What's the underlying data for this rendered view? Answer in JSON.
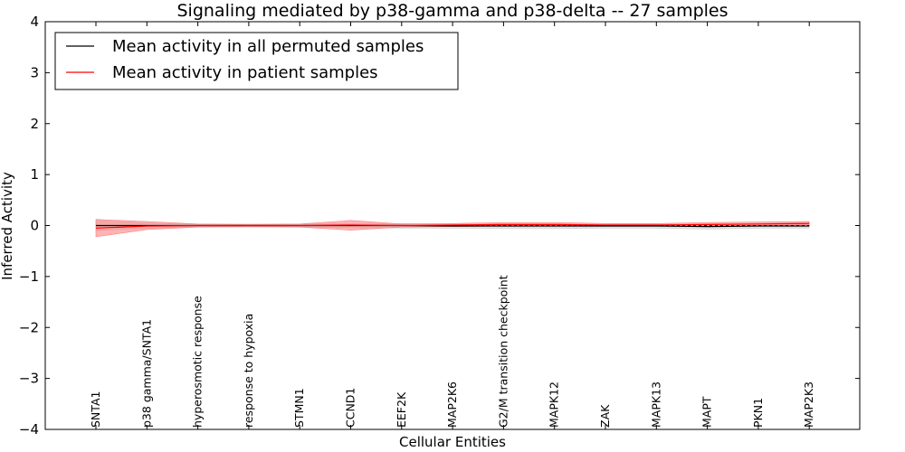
{
  "chart_data": {
    "type": "line",
    "title": "Signaling mediated by p38-gamma and p38-delta -- 27 samples",
    "xlabel": "Cellular Entities",
    "ylabel": "Inferred Activity",
    "ylim": [
      -4,
      4
    ],
    "yticks": [
      -4,
      -3,
      -2,
      -1,
      0,
      1,
      2,
      3,
      4
    ],
    "ytick_labels": [
      "−4",
      "−3",
      "−2",
      "−1",
      "0",
      "1",
      "2",
      "3",
      "4"
    ],
    "categories": [
      "SNTA1",
      "p38 gamma/SNTA1",
      "hyperosmotic response",
      "response to hypoxia",
      "STMN1",
      "CCND1",
      "EEF2K",
      "MAP2K6",
      "G2/M transition checkpoint",
      "MAPK12",
      "ZAK",
      "MAPK13",
      "MAPT",
      "PKN1",
      "MAP2K3"
    ],
    "legend_position": "top-left",
    "colors": {
      "permuted": "#000000",
      "patient": "#ff0000",
      "permuted_band": "#cccccc",
      "patient_band": "#ff8080"
    },
    "series": [
      {
        "name": "Mean activity in all permuted samples",
        "values": [
          0.0,
          0.0,
          0.0,
          0.0,
          0.0,
          0.0,
          0.0,
          -0.01,
          -0.01,
          -0.01,
          -0.01,
          -0.01,
          -0.02,
          -0.01,
          -0.01
        ],
        "lower": [
          -0.1,
          -0.05,
          -0.03,
          -0.03,
          -0.03,
          -0.04,
          -0.05,
          -0.05,
          -0.06,
          -0.06,
          -0.05,
          -0.05,
          -0.07,
          -0.05,
          -0.05
        ],
        "upper": [
          0.1,
          0.05,
          0.03,
          0.03,
          0.03,
          0.04,
          0.04,
          0.03,
          0.03,
          0.03,
          0.03,
          0.03,
          0.03,
          0.03,
          0.03
        ]
      },
      {
        "name": "Mean activity in patient samples",
        "values": [
          -0.05,
          -0.01,
          0.0,
          0.0,
          0.0,
          0.01,
          0.0,
          0.01,
          0.02,
          0.02,
          0.01,
          0.01,
          0.02,
          0.03,
          0.04
        ],
        "lower": [
          -0.22,
          -0.08,
          -0.03,
          -0.02,
          -0.03,
          -0.09,
          -0.03,
          -0.02,
          -0.01,
          -0.01,
          -0.01,
          -0.01,
          -0.01,
          0.0,
          0.01
        ],
        "upper": [
          0.12,
          0.08,
          0.03,
          0.02,
          0.03,
          0.1,
          0.03,
          0.04,
          0.06,
          0.06,
          0.04,
          0.04,
          0.06,
          0.07,
          0.08
        ]
      }
    ]
  }
}
